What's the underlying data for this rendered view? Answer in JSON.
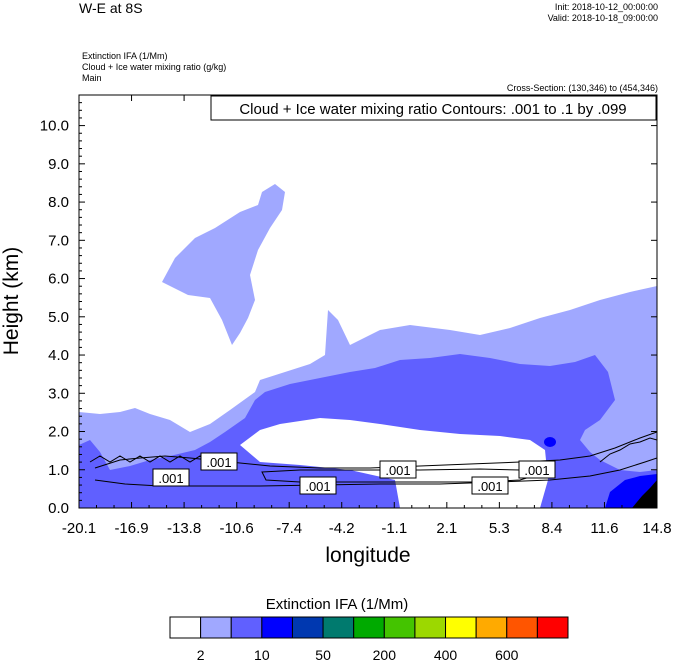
{
  "header": {
    "title": "W-E at 8S",
    "init": "Init: 2018-10-12_00:00:00",
    "valid": "Valid: 2018-10-18_09:00:00",
    "field1": "Extinction IFA   (1/Mm)",
    "field2": "Cloud + Ice water mixing ratio   (g/kg)",
    "field3": "Main",
    "cross_section": "Cross-Section: (130,346) to (454,346)"
  },
  "chart_data": {
    "type": "contour",
    "contour_label": "Cloud + Ice water mixing ratio Contours: .001 to .1 by .099",
    "xlabel": "longitude",
    "ylabel": "Height (km)",
    "x_ticks": [
      "-20.1",
      "-16.9",
      "-13.8",
      "-10.6",
      "-7.4",
      "-4.2",
      "-1.1",
      "2.1",
      "5.3",
      "8.4",
      "11.6",
      "14.8"
    ],
    "xlim": [
      -20.1,
      14.8
    ],
    "y_ticks": [
      "0.0",
      "1.0",
      "2.0",
      "3.0",
      "4.0",
      "5.0",
      "6.0",
      "7.0",
      "8.0",
      "9.0",
      "10.0"
    ],
    "ylim": [
      0,
      10.8
    ],
    "contour_level_labels": [
      ".001",
      ".001",
      ".001",
      ".001",
      ".001",
      ".001"
    ],
    "colorbar": {
      "title": "Extinction IFA  (1/Mm)",
      "colors": [
        "#ffffff",
        "#a0a8ff",
        "#6060ff",
        "#0000ff",
        "#0038b0",
        "#007a6e",
        "#00aa00",
        "#44c400",
        "#9cd800",
        "#ffff00",
        "#ffaa00",
        "#ff5500",
        "#ff0000"
      ],
      "tick_labels": [
        "2",
        "10",
        "50",
        "200",
        "400",
        "600"
      ]
    }
  }
}
